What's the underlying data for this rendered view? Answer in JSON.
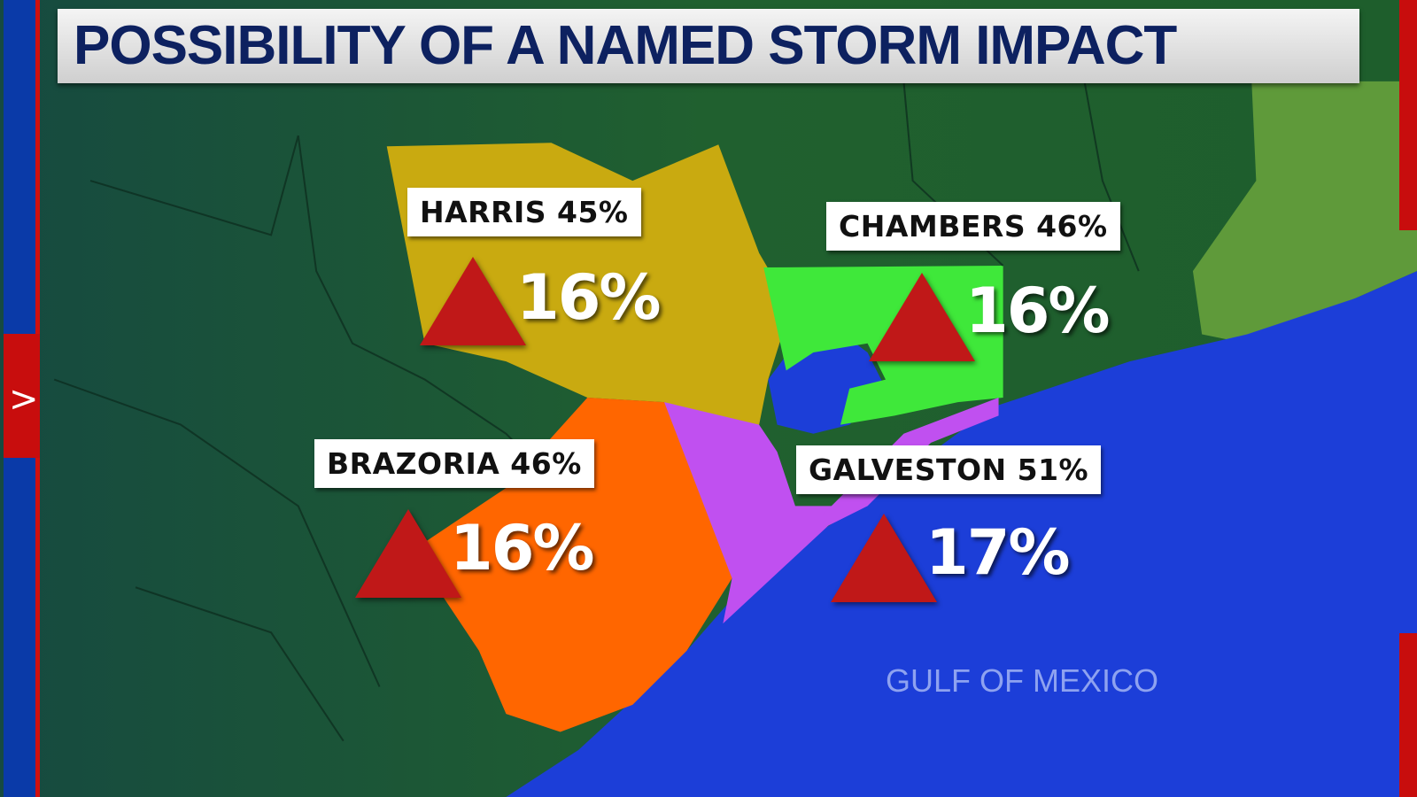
{
  "title": "POSSIBILITY OF A NAMED STORM IMPACT",
  "water_label": "GULF OF MEXICO",
  "counties": [
    {
      "name_label": "HARRIS 45%",
      "change_pct": "16%",
      "trend": "up-arrow",
      "color": "#c9aa10"
    },
    {
      "name_label": "CHAMBERS 46%",
      "change_pct": "16%",
      "trend": "up-arrow",
      "color": "#3fe83a"
    },
    {
      "name_label": "BRAZORIA 46%",
      "change_pct": "16%",
      "trend": "up-arrow",
      "color": "#ff6600"
    },
    {
      "name_label": "GALVESTON 51%",
      "change_pct": "17%",
      "trend": "up-arrow",
      "color": "#c050f0"
    }
  ],
  "colors": {
    "land": "#1f5e33",
    "water": "#1c3ed8",
    "title_text": "#0d2160",
    "arrow": "#c01818"
  },
  "sidebar": {
    "icon": "chevron-right-icon",
    "chevron": ">"
  }
}
